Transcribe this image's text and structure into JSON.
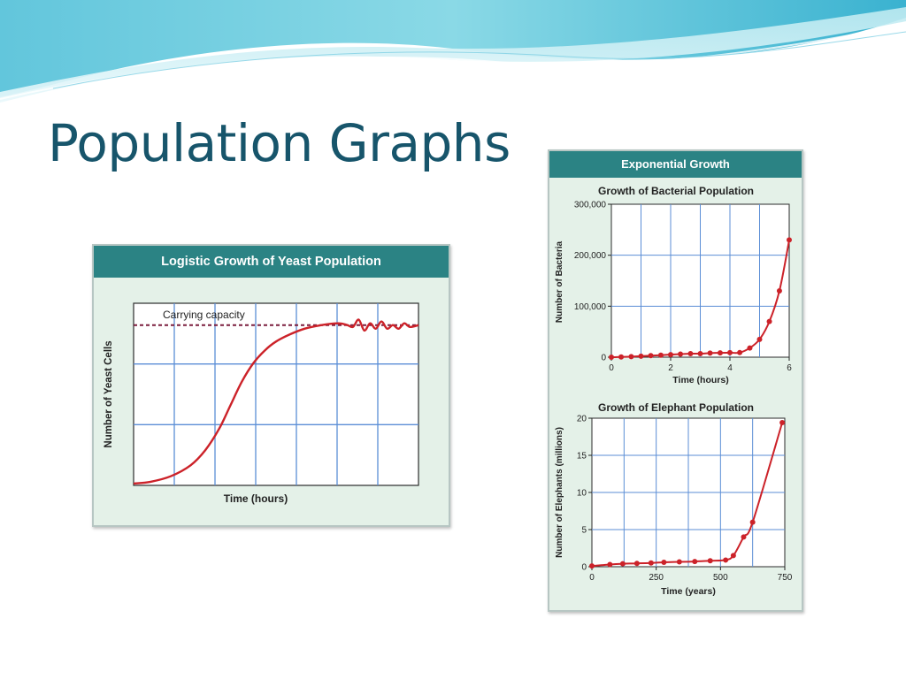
{
  "slide": {
    "title": "Population Graphs"
  },
  "theme": {
    "title_color": "#17556b",
    "header_color": "#2b8384",
    "panel_bg": "#e4f1e8",
    "grid_color": "#5b8ed6",
    "curve_color": "#cc2229",
    "dashed_line_color": "#7a1d3d"
  },
  "logistic_panel": {
    "header": "Logistic Growth of  Yeast Population"
  },
  "exponential_panel": {
    "header": "Exponential Growth"
  },
  "chart_data": [
    {
      "type": "line",
      "title": "",
      "xlabel": "Time (hours)",
      "ylabel": "Number of Yeast Cells",
      "annotation": "Carrying capacity",
      "x_tick_labels": [],
      "y_tick_labels": [],
      "xlim": [
        0,
        1
      ],
      "ylim": [
        0,
        1
      ],
      "carrying_capacity": 0.88,
      "grid": true,
      "series": [
        {
          "x": [
            0,
            0.06,
            0.13,
            0.2,
            0.25,
            0.3,
            0.34,
            0.38,
            0.42,
            0.46,
            0.5,
            0.55,
            0.6,
            0.66,
            0.72,
            0.75,
            0.77,
            0.79,
            0.81,
            0.83,
            0.85,
            0.87,
            0.89,
            0.91,
            0.93,
            0.95,
            0.97,
            1.0
          ],
          "y": [
            0.01,
            0.02,
            0.05,
            0.11,
            0.19,
            0.31,
            0.44,
            0.57,
            0.67,
            0.74,
            0.79,
            0.83,
            0.86,
            0.88,
            0.89,
            0.88,
            0.87,
            0.91,
            0.85,
            0.89,
            0.86,
            0.9,
            0.86,
            0.88,
            0.86,
            0.89,
            0.87,
            0.88
          ]
        }
      ]
    },
    {
      "type": "line",
      "title": "Growth of Bacterial Population",
      "xlabel": "Time (hours)",
      "ylabel": "Number of Bacteria",
      "x_ticks": [
        0,
        2,
        4,
        6
      ],
      "y_ticks": [
        0,
        100000,
        200000,
        300000
      ],
      "x_tick_labels": [
        "0",
        "2",
        "4",
        "6"
      ],
      "y_tick_labels": [
        "0",
        "100,000",
        "200,000",
        "300,000"
      ],
      "xlim": [
        0,
        6
      ],
      "ylim": [
        0,
        300000
      ],
      "grid": true,
      "series": [
        {
          "markers": true,
          "x": [
            0,
            0.33,
            0.67,
            1.0,
            1.33,
            1.67,
            2.0,
            2.33,
            2.67,
            3.0,
            3.33,
            3.67,
            4.0,
            4.33,
            4.67,
            5.0,
            5.33,
            5.67,
            6.0
          ],
          "y": [
            0,
            500,
            1000,
            2000,
            3000,
            4000,
            5000,
            6000,
            7000,
            7000,
            8000,
            8500,
            8800,
            9000,
            18000,
            35000,
            70000,
            130000,
            230000
          ]
        }
      ]
    },
    {
      "type": "line",
      "title": "Growth of Elephant Population",
      "xlabel": "Time (years)",
      "ylabel": "Number of Elephants (millions)",
      "x_ticks": [
        0,
        250,
        500,
        750
      ],
      "y_ticks": [
        0,
        5,
        10,
        15,
        20
      ],
      "x_tick_labels": [
        "0",
        "250",
        "500",
        "750"
      ],
      "y_tick_labels": [
        "0",
        "5",
        "10",
        "15",
        "20"
      ],
      "xlim": [
        0,
        750
      ],
      "ylim": [
        0,
        20
      ],
      "grid": true,
      "series": [
        {
          "markers": true,
          "x": [
            0,
            70,
            120,
            175,
            230,
            280,
            340,
            400,
            460,
            520,
            550,
            590,
            625,
            740
          ],
          "y": [
            0.1,
            0.3,
            0.4,
            0.45,
            0.5,
            0.6,
            0.65,
            0.7,
            0.8,
            0.9,
            1.5,
            4.0,
            6.0,
            19.4
          ]
        }
      ]
    }
  ]
}
